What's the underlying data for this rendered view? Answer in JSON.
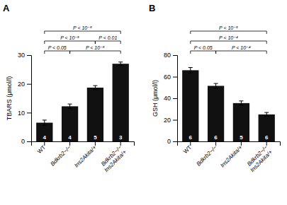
{
  "chart_data": [
    {
      "type": "bar",
      "title": "A",
      "ylabel": "TBARS (μmol/l)",
      "categories": [
        "WT",
        "Bdkrb2−/−",
        "Ins2Akita/+",
        "Bdkrb2−/−\nIns2Akita/+"
      ],
      "values": [
        6.5,
        12.2,
        18.7,
        27.0
      ],
      "errors": [
        0.9,
        0.8,
        0.7,
        0.6
      ],
      "n_labels": [
        "4",
        "4",
        "5",
        "3"
      ],
      "color": "#111111",
      "ylim": [
        0,
        30
      ],
      "yticks": [
        0,
        10,
        20,
        30
      ],
      "annotations": [
        {
          "from": 0,
          "to": 1,
          "text": "P < 0.05"
        },
        {
          "from": 1,
          "to": 3,
          "text": "P < 10⁻⁵"
        },
        {
          "from": 0,
          "to": 2,
          "text": "P < 10⁻⁵"
        },
        {
          "from": 2,
          "to": 3,
          "text": "P < 0.01"
        },
        {
          "from": 0,
          "to": 3,
          "text": "P < 10⁻⁵"
        }
      ]
    },
    {
      "type": "bar",
      "title": "B",
      "ylabel": "GSH (μmol/l)",
      "categories": [
        "WT",
        "Bdkrb2−/−",
        "Ins2Akita/+",
        "Bdkrb2−/−\nIns2Akita/+"
      ],
      "values": [
        66.0,
        51.5,
        35.5,
        25.0
      ],
      "errors": [
        2.5,
        2.2,
        2.0,
        1.8
      ],
      "n_labels": [
        "6",
        "6",
        "5",
        "6"
      ],
      "color": "#111111",
      "ylim": [
        0,
        80
      ],
      "yticks": [
        0,
        20,
        40,
        60,
        80
      ],
      "annotations": [
        {
          "from": 0,
          "to": 1,
          "text": "P < 0.05"
        },
        {
          "from": 1,
          "to": 3,
          "text": "P < 10⁻⁴"
        },
        {
          "from": 0,
          "to": 3,
          "text": "P < 10⁻⁴"
        },
        {
          "from": 0,
          "to": 3,
          "text": "P < 10⁻⁵"
        }
      ]
    }
  ]
}
